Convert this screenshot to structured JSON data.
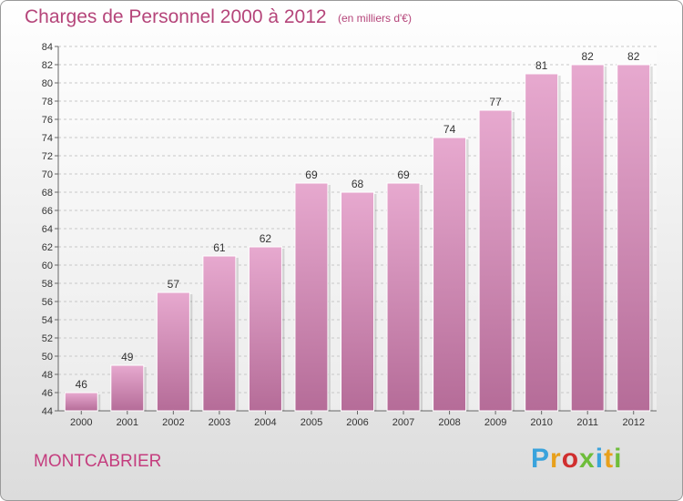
{
  "title": "Charges de Personnel 2000 à 2012",
  "subtitle": "(en milliers d'€)",
  "commune": "MONTCABRIER",
  "brand": {
    "text": "Proxiti",
    "colors": [
      "#3aa3dc",
      "#e8a01b",
      "#d02f2f",
      "#6ebd3a",
      "#3aa3dc",
      "#e8a01b",
      "#6ebd3a"
    ]
  },
  "colors": {
    "bar_top": "#e7a9cf",
    "bar_bottom": "#b56c98",
    "text": "#b5457a"
  },
  "chart_data": {
    "type": "bar",
    "title": "Charges de Personnel 2000 à 2012",
    "subtitle": "(en milliers d'€)",
    "categories": [
      "2000",
      "2001",
      "2002",
      "2003",
      "2004",
      "2005",
      "2006",
      "2007",
      "2008",
      "2009",
      "2010",
      "2011",
      "2012"
    ],
    "values": [
      46,
      49,
      57,
      61,
      62,
      69,
      68,
      69,
      74,
      77,
      81,
      82,
      82
    ],
    "ylim": [
      44,
      84
    ],
    "yticks": [
      44,
      46,
      48,
      50,
      52,
      54,
      56,
      58,
      60,
      62,
      64,
      66,
      68,
      70,
      72,
      74,
      76,
      78,
      80,
      82,
      84
    ],
    "grid": true,
    "data_labels": true
  }
}
